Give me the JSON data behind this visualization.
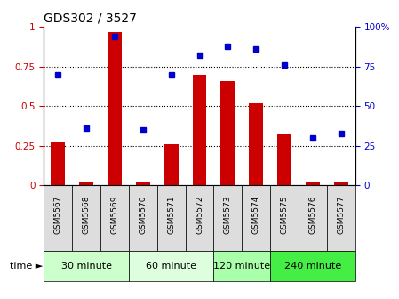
{
  "title": "GDS302 / 3527",
  "samples": [
    "GSM5567",
    "GSM5568",
    "GSM5569",
    "GSM5570",
    "GSM5571",
    "GSM5572",
    "GSM5573",
    "GSM5574",
    "GSM5575",
    "GSM5576",
    "GSM5577"
  ],
  "log_ratio": [
    0.27,
    0.02,
    0.97,
    0.02,
    0.26,
    0.7,
    0.66,
    0.52,
    0.32,
    0.02,
    0.02
  ],
  "percentile": [
    70,
    36,
    94,
    35,
    70,
    82,
    88,
    86,
    76,
    30,
    33
  ],
  "time_groups": [
    {
      "label": "30 minute",
      "start": 0,
      "end": 3,
      "color": "#ccffcc"
    },
    {
      "label": "60 minute",
      "start": 3,
      "end": 6,
      "color": "#ddffdd"
    },
    {
      "label": "120 minute",
      "start": 6,
      "end": 8,
      "color": "#aaffaa"
    },
    {
      "label": "240 minute",
      "start": 8,
      "end": 11,
      "color": "#44ee44"
    }
  ],
  "bar_color": "#cc0000",
  "dot_color": "#0000cc",
  "yticks_left": [
    0,
    0.25,
    0.5,
    0.75,
    1.0
  ],
  "ytick_labels_left": [
    "0",
    "0.25",
    "0.5",
    "0.75",
    "1"
  ],
  "yticks_right": [
    0,
    25,
    50,
    75,
    100
  ],
  "ytick_labels_right": [
    "0",
    "25",
    "50",
    "75",
    "100%"
  ],
  "sample_box_color": "#dddddd",
  "time_label": "time ►"
}
